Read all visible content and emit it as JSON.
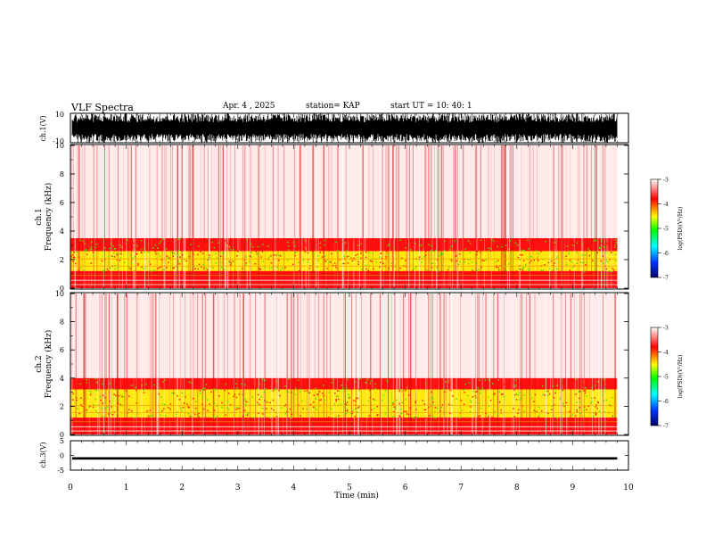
{
  "header": {
    "title": "VLF Spectra",
    "date": "Apr. 4 , 2025",
    "station": "station= KAP",
    "start": "start UT = 10: 40: 1"
  },
  "chart_data": [
    {
      "type": "line",
      "name": "ch.1 waveform",
      "ylabel": "ch.1(V)",
      "ylim": [
        -10,
        10
      ],
      "yticks": [
        "10",
        "-10"
      ],
      "xlim": [
        0,
        10
      ]
    },
    {
      "type": "heatmap",
      "name": "ch.1 spectrogram",
      "ylabel": "ch.1\nFrequency (kHz)",
      "ylim": [
        0,
        10
      ],
      "yticks": [
        "0",
        "2",
        "4",
        "6",
        "8",
        "10"
      ],
      "xlim": [
        0,
        9.8
      ],
      "colorbar": {
        "label": "log(PSD)(V²/Hz)",
        "range": [
          -7,
          -3
        ],
        "ticks": [
          "-3",
          "-4",
          "-5",
          "-6",
          "-7"
        ],
        "colors": [
          "#000066",
          "#0033ff",
          "#00ffff",
          "#00ff00",
          "#ffff00",
          "#ff0000",
          "#ffffff"
        ]
      },
      "bands": [
        {
          "from_khz": 0,
          "to_khz": 0.4,
          "level": -3.8
        },
        {
          "from_khz": 0.4,
          "to_khz": 1.2,
          "level": -4.3
        },
        {
          "from_khz": 1.2,
          "to_khz": 2.6,
          "level": -4.6
        },
        {
          "from_khz": 2.6,
          "to_khz": 3.5,
          "level": -4.1
        },
        {
          "from_khz": 3.5,
          "to_khz": 10,
          "level": -3.4
        }
      ]
    },
    {
      "type": "heatmap",
      "name": "ch.2 spectrogram",
      "ylabel": "ch.2\nFrequency (kHz)",
      "ylim": [
        0,
        10
      ],
      "yticks": [
        "0",
        "2",
        "4",
        "6",
        "8",
        "10"
      ],
      "xlim": [
        0,
        9.8
      ],
      "colorbar": {
        "label": "log(PSD)(V²/Hz)",
        "range": [
          -7,
          -3
        ],
        "ticks": [
          "-3",
          "-4",
          "-5",
          "-6",
          "-7"
        ],
        "colors": [
          "#000066",
          "#0033ff",
          "#00ffff",
          "#00ff00",
          "#ffff00",
          "#ff0000",
          "#ffffff"
        ]
      },
      "bands": [
        {
          "from_khz": 0,
          "to_khz": 0.4,
          "level": -3.8
        },
        {
          "from_khz": 0.4,
          "to_khz": 1.2,
          "level": -4.4
        },
        {
          "from_khz": 1.2,
          "to_khz": 3.2,
          "level": -4.8
        },
        {
          "from_khz": 3.2,
          "to_khz": 4.0,
          "level": -4.1
        },
        {
          "from_khz": 4.0,
          "to_khz": 10,
          "level": -3.4
        }
      ]
    },
    {
      "type": "line",
      "name": "ch.3 waveform",
      "ylabel": "ch.3(V)",
      "ylim": [
        -5,
        5
      ],
      "yticks": [
        "5",
        "0",
        "-5"
      ],
      "xlim": [
        0,
        10
      ],
      "signal_band_v": [
        -1.4,
        -0.6
      ]
    }
  ],
  "xaxis": {
    "label": "Time (min)",
    "ticks": [
      "0",
      "1",
      "2",
      "3",
      "4",
      "5",
      "6",
      "7",
      "8",
      "9",
      "10"
    ],
    "range": [
      0,
      10
    ]
  }
}
